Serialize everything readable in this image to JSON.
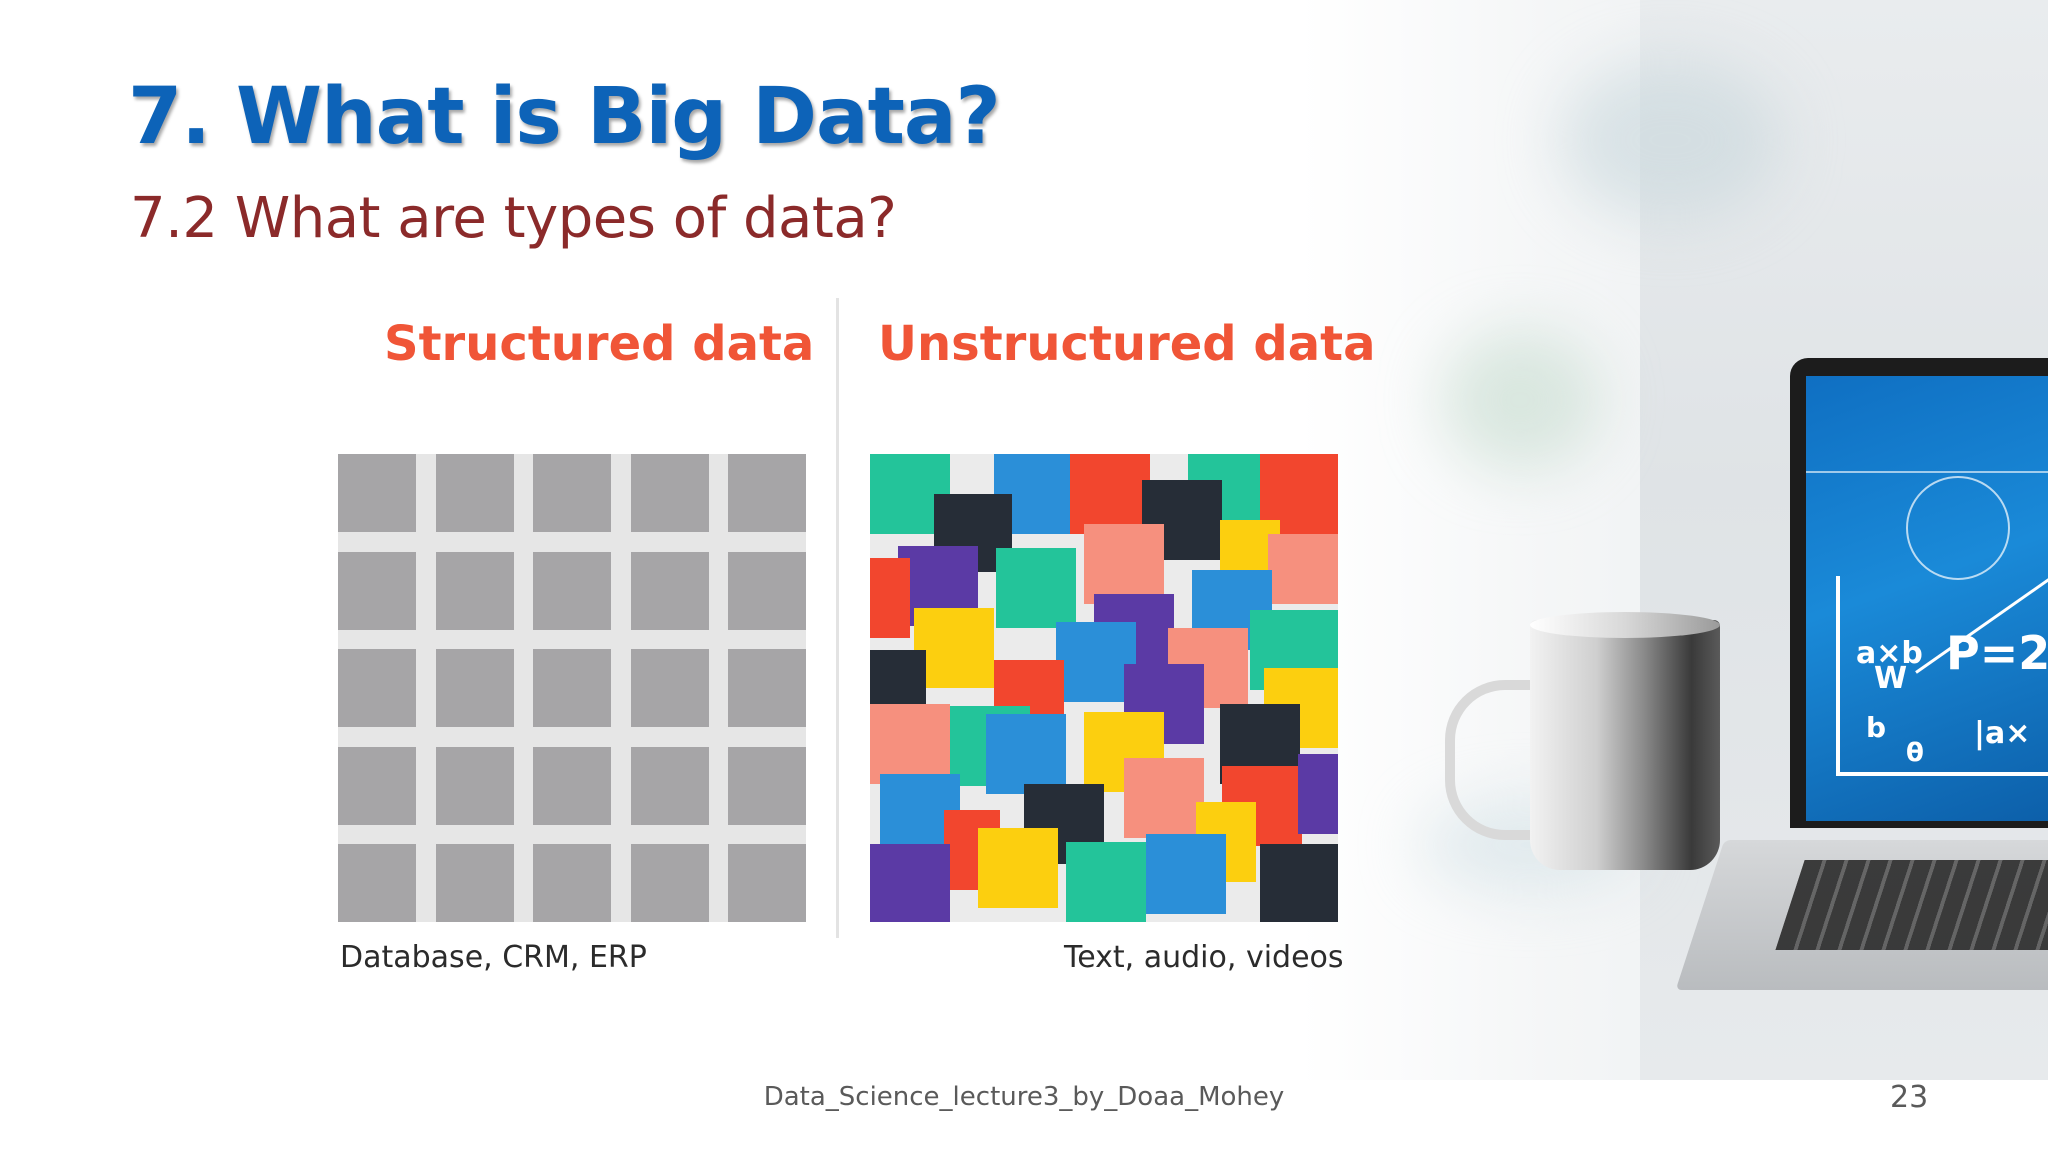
{
  "slide": {
    "title": "7. What is Big Data?",
    "subtitle": "7.2 What are types of data?",
    "footer": "Data_Science_lecture3_by_Doaa_Mohey",
    "page_number": "23"
  },
  "figure": {
    "structured": {
      "heading": "Structured data",
      "caption": "Database, CRM, ERP"
    },
    "unstructured": {
      "heading": "Unstructured data",
      "caption": "Text, audio, videos"
    },
    "colors": {
      "heading": "#f05537",
      "grid_cell": "#a6a5a7",
      "teal": "#23c49a",
      "blue": "#2b8fd8",
      "red": "#f2462e",
      "navy": "#262d37",
      "purple": "#5b3aa5",
      "yellow": "#fccf0f",
      "salmon": "#f6907e"
    }
  },
  "laptop_screen": {
    "formula_1": "P=2",
    "formula_2": "a×b",
    "formula_3": "W",
    "formula_4": "b",
    "formula_5": "θ",
    "formula_6": "|a×"
  },
  "title_color": "#0d63b8",
  "subtitle_color": "#8b2a2a"
}
